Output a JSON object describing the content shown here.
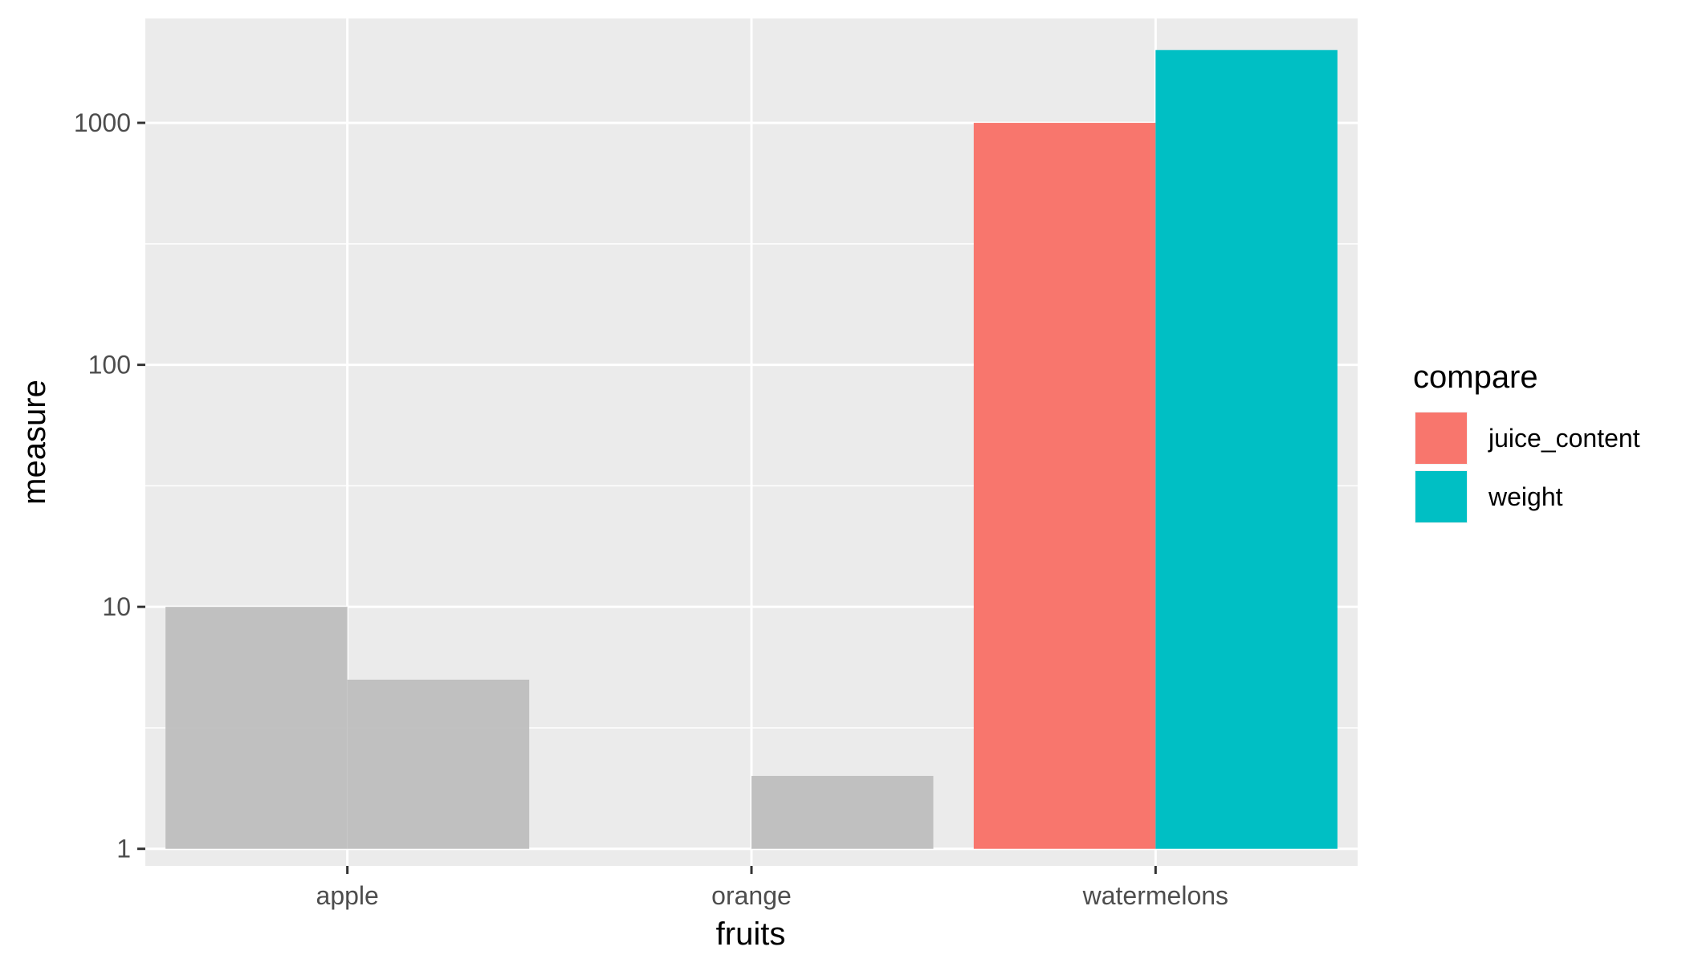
{
  "chart_data": {
    "type": "bar",
    "categories": [
      "apple",
      "orange",
      "watermelons"
    ],
    "series": [
      {
        "name": "juice_content",
        "values": [
          10,
          1,
          1000
        ],
        "color": "#F8766D"
      },
      {
        "name": "weight",
        "values": [
          5,
          2,
          2000
        ],
        "color": "#00BFC4"
      }
    ],
    "highlight_category": "watermelons",
    "muted_color": "#BEBEBE",
    "xlabel": "fruits",
    "ylabel": "measure",
    "y_scale": "log10",
    "y_ticks": [
      1,
      10,
      100,
      1000
    ],
    "y_tick_labels": [
      "1",
      "10",
      "100",
      "1000"
    ],
    "ylim": [
      0.85,
      2700
    ],
    "grid": true,
    "legend_title": "compare",
    "legend_position": "right",
    "colors": {
      "panel": "#EBEBEB",
      "grid": "#FFFFFF",
      "background": "#FFFFFF"
    }
  }
}
